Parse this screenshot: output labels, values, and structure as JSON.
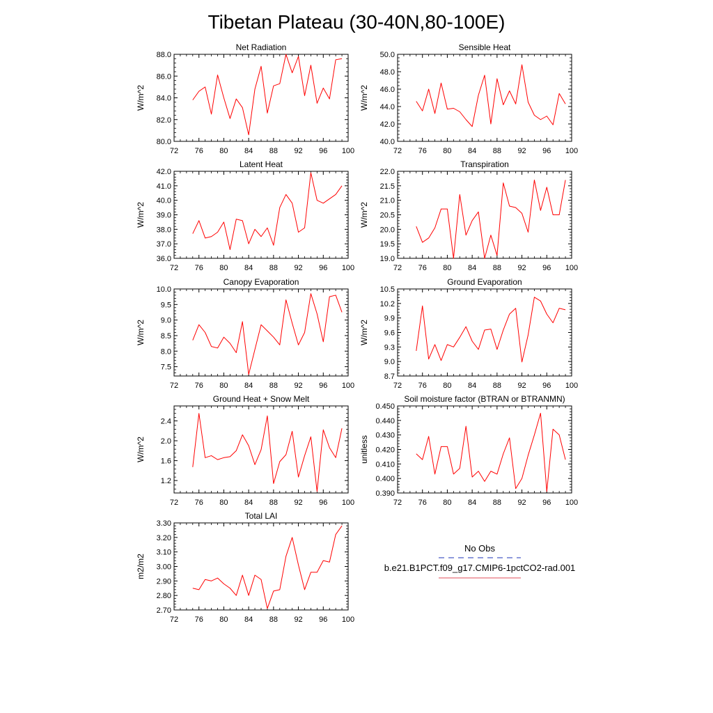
{
  "page_title": "Tibetan Plateau (30-40N,80-100E)",
  "legend": {
    "entries": [
      {
        "label": "No Obs",
        "color": "#4a5cc7",
        "style": "dashed"
      },
      {
        "label": "b.e21.B1PCT.f09_g17.CMIP6-1pctCO2-rad.001",
        "color": "#e8707a",
        "style": "solid"
      }
    ]
  },
  "chart_data": [
    {
      "type": "line",
      "title": "Net Radiation",
      "ylabel": "W/m^2",
      "xlim": [
        72,
        100
      ],
      "ylim": [
        80.0,
        88.0
      ],
      "xticks": [
        72,
        76,
        80,
        84,
        88,
        92,
        96,
        100
      ],
      "xtick_labels": [
        "72",
        "76",
        "80",
        "84",
        "88",
        "92",
        "96",
        "100"
      ],
      "yticks": [
        80.0,
        82.0,
        84.0,
        86.0,
        88.0
      ],
      "ytick_labels": [
        "80.0",
        "82.0",
        "84.0",
        "86.0",
        "88.0"
      ],
      "series": [
        {
          "color": "#ff0000",
          "x": [
            75,
            76,
            77,
            78,
            79,
            80,
            81,
            82,
            83,
            84,
            85,
            86,
            87,
            88,
            89,
            90,
            91,
            92,
            93,
            94,
            95,
            96,
            97,
            98,
            99
          ],
          "values": [
            83.8,
            84.6,
            85.0,
            82.5,
            86.1,
            84.0,
            82.1,
            83.9,
            83.1,
            80.6,
            84.8,
            86.9,
            82.6,
            85.1,
            85.3,
            88.0,
            86.3,
            87.8,
            84.2,
            87.0,
            83.5,
            84.9,
            83.9,
            87.5,
            87.6
          ]
        }
      ]
    },
    {
      "type": "line",
      "title": "Sensible Heat",
      "ylabel": "W/m^2",
      "xlim": [
        72,
        100
      ],
      "ylim": [
        40.0,
        50.0
      ],
      "xticks": [
        72,
        76,
        80,
        84,
        88,
        92,
        96,
        100
      ],
      "xtick_labels": [
        "72",
        "76",
        "80",
        "84",
        "88",
        "92",
        "96",
        "100"
      ],
      "yticks": [
        40.0,
        42.0,
        44.0,
        46.0,
        48.0,
        50.0
      ],
      "ytick_labels": [
        "40.0",
        "42.0",
        "44.0",
        "46.0",
        "48.0",
        "50.0"
      ],
      "series": [
        {
          "color": "#ff0000",
          "x": [
            75,
            76,
            77,
            78,
            79,
            80,
            81,
            82,
            83,
            84,
            85,
            86,
            87,
            88,
            89,
            90,
            91,
            92,
            93,
            94,
            95,
            96,
            97,
            98,
            99
          ],
          "values": [
            44.6,
            43.5,
            46.0,
            43.2,
            46.7,
            43.7,
            43.8,
            43.4,
            42.5,
            41.7,
            45.3,
            47.6,
            42.0,
            47.2,
            44.2,
            45.8,
            44.3,
            48.8,
            44.5,
            43.0,
            42.5,
            42.9,
            41.9,
            45.5,
            44.3
          ]
        }
      ]
    },
    {
      "type": "line",
      "title": "Latent Heat",
      "ylabel": "W/m^2",
      "xlim": [
        72,
        100
      ],
      "ylim": [
        36.0,
        42.0
      ],
      "xticks": [
        72,
        76,
        80,
        84,
        88,
        92,
        96,
        100
      ],
      "xtick_labels": [
        "72",
        "76",
        "80",
        "84",
        "88",
        "92",
        "96",
        "100"
      ],
      "yticks": [
        36.0,
        37.0,
        38.0,
        39.0,
        40.0,
        41.0,
        42.0
      ],
      "ytick_labels": [
        "36.0",
        "37.0",
        "38.0",
        "39.0",
        "40.0",
        "41.0",
        "42.0"
      ],
      "series": [
        {
          "color": "#ff0000",
          "x": [
            75,
            76,
            77,
            78,
            79,
            80,
            81,
            82,
            83,
            84,
            85,
            86,
            87,
            88,
            89,
            90,
            91,
            92,
            93,
            94,
            95,
            96,
            97,
            98,
            99
          ],
          "values": [
            37.7,
            38.6,
            37.4,
            37.5,
            37.8,
            38.5,
            36.6,
            38.7,
            38.6,
            37.0,
            38.0,
            37.5,
            38.1,
            36.9,
            39.5,
            40.4,
            39.8,
            37.8,
            38.1,
            41.9,
            40.0,
            39.8,
            40.1,
            40.4,
            41.0
          ]
        }
      ]
    },
    {
      "type": "line",
      "title": "Transpiration",
      "ylabel": "W/m^2",
      "xlim": [
        72,
        100
      ],
      "ylim": [
        19.0,
        22.0
      ],
      "xticks": [
        72,
        76,
        80,
        84,
        88,
        92,
        96,
        100
      ],
      "xtick_labels": [
        "72",
        "76",
        "80",
        "84",
        "88",
        "92",
        "96",
        "100"
      ],
      "yticks": [
        19.0,
        19.5,
        20.0,
        20.5,
        21.0,
        21.5,
        22.0
      ],
      "ytick_labels": [
        "19.0",
        "19.5",
        "20.0",
        "20.5",
        "21.0",
        "21.5",
        "22.0"
      ],
      "series": [
        {
          "color": "#ff0000",
          "x": [
            75,
            76,
            77,
            78,
            79,
            80,
            81,
            82,
            83,
            84,
            85,
            86,
            87,
            88,
            89,
            90,
            91,
            92,
            93,
            94,
            95,
            96,
            97,
            98,
            99
          ],
          "values": [
            20.1,
            19.55,
            19.7,
            20.05,
            20.7,
            20.7,
            19.0,
            21.2,
            19.8,
            20.3,
            20.6,
            19.0,
            19.8,
            19.1,
            21.6,
            20.8,
            20.75,
            20.55,
            19.9,
            21.7,
            20.65,
            21.45,
            20.5,
            20.5,
            21.7
          ]
        }
      ]
    },
    {
      "type": "line",
      "title": "Canopy Evaporation",
      "ylabel": "W/m^2",
      "xlim": [
        72,
        100
      ],
      "ylim": [
        7.2,
        10.0
      ],
      "xticks": [
        72,
        76,
        80,
        84,
        88,
        92,
        96,
        100
      ],
      "xtick_labels": [
        "72",
        "76",
        "80",
        "84",
        "88",
        "92",
        "96",
        "100"
      ],
      "yticks": [
        7.5,
        8.0,
        8.5,
        9.0,
        9.5,
        10.0
      ],
      "ytick_labels": [
        "7.5",
        "8.0",
        "8.5",
        "9.0",
        "9.5",
        "10.0"
      ],
      "series": [
        {
          "color": "#ff0000",
          "x": [
            75,
            76,
            77,
            78,
            79,
            80,
            81,
            82,
            83,
            84,
            85,
            86,
            87,
            88,
            89,
            90,
            91,
            92,
            93,
            94,
            95,
            96,
            97,
            98,
            99
          ],
          "values": [
            8.35,
            8.85,
            8.6,
            8.15,
            8.1,
            8.45,
            8.25,
            7.95,
            8.95,
            7.25,
            8.05,
            8.85,
            8.65,
            8.45,
            8.2,
            9.65,
            8.9,
            8.2,
            8.6,
            9.85,
            9.2,
            8.3,
            9.75,
            9.8,
            9.25
          ]
        }
      ]
    },
    {
      "type": "line",
      "title": "Ground Evaporation",
      "ylabel": "W/m^2",
      "xlim": [
        72,
        100
      ],
      "ylim": [
        8.7,
        10.5
      ],
      "xticks": [
        72,
        76,
        80,
        84,
        88,
        92,
        96,
        100
      ],
      "xtick_labels": [
        "72",
        "76",
        "80",
        "84",
        "88",
        "92",
        "96",
        "100"
      ],
      "yticks": [
        8.7,
        9.0,
        9.3,
        9.6,
        9.9,
        10.2,
        10.5
      ],
      "ytick_labels": [
        "8.7",
        "9.0",
        "9.3",
        "9.6",
        "9.9",
        "10.2",
        "10.5"
      ],
      "series": [
        {
          "color": "#ff0000",
          "x": [
            75,
            76,
            77,
            78,
            79,
            80,
            81,
            82,
            83,
            84,
            85,
            86,
            87,
            88,
            89,
            90,
            91,
            92,
            93,
            94,
            95,
            96,
            97,
            98,
            99
          ],
          "values": [
            9.22,
            10.15,
            9.05,
            9.35,
            9.02,
            9.35,
            9.3,
            9.5,
            9.72,
            9.42,
            9.25,
            9.65,
            9.67,
            9.25,
            9.65,
            9.98,
            10.1,
            8.99,
            9.55,
            10.33,
            10.25,
            9.98,
            9.8,
            10.1,
            10.07
          ]
        }
      ]
    },
    {
      "type": "line",
      "title": "Ground Heat + Snow Melt",
      "ylabel": "W/m^2",
      "xlim": [
        72,
        100
      ],
      "ylim": [
        0.95,
        2.7
      ],
      "xticks": [
        72,
        76,
        80,
        84,
        88,
        92,
        96,
        100
      ],
      "xtick_labels": [
        "72",
        "76",
        "80",
        "84",
        "88",
        "92",
        "96",
        "100"
      ],
      "yticks": [
        1.2,
        1.6,
        2.0,
        2.4
      ],
      "ytick_labels": [
        "1.2",
        "1.6",
        "2.0",
        "2.4"
      ],
      "series": [
        {
          "color": "#ff0000",
          "x": [
            75,
            76,
            77,
            78,
            79,
            80,
            81,
            82,
            83,
            84,
            85,
            86,
            87,
            88,
            89,
            90,
            91,
            92,
            93,
            94,
            95,
            96,
            97,
            98,
            99
          ],
          "values": [
            1.47,
            2.55,
            1.66,
            1.7,
            1.62,
            1.66,
            1.68,
            1.8,
            2.12,
            1.9,
            1.52,
            1.82,
            2.5,
            1.14,
            1.58,
            1.72,
            2.19,
            1.27,
            1.7,
            2.08,
            0.98,
            2.22,
            1.86,
            1.66,
            2.25
          ]
        }
      ]
    },
    {
      "type": "line",
      "title": "Soil moisture factor (BTRAN or BTRANMN)",
      "ylabel": "unitless",
      "xlim": [
        72,
        100
      ],
      "ylim": [
        0.39,
        0.45
      ],
      "xticks": [
        72,
        76,
        80,
        84,
        88,
        92,
        96,
        100
      ],
      "xtick_labels": [
        "72",
        "76",
        "80",
        "84",
        "88",
        "92",
        "96",
        "100"
      ],
      "yticks": [
        0.39,
        0.4,
        0.41,
        0.42,
        0.43,
        0.44,
        0.45
      ],
      "ytick_labels": [
        "0.390",
        "0.400",
        "0.410",
        "0.420",
        "0.430",
        "0.440",
        "0.450"
      ],
      "series": [
        {
          "color": "#ff0000",
          "x": [
            75,
            76,
            77,
            78,
            79,
            80,
            81,
            82,
            83,
            84,
            85,
            86,
            87,
            88,
            89,
            90,
            91,
            92,
            93,
            94,
            95,
            96,
            97,
            98,
            99
          ],
          "values": [
            0.417,
            0.413,
            0.429,
            0.403,
            0.422,
            0.422,
            0.403,
            0.407,
            0.436,
            0.401,
            0.405,
            0.398,
            0.405,
            0.403,
            0.417,
            0.428,
            0.393,
            0.4,
            0.416,
            0.43,
            0.445,
            0.391,
            0.434,
            0.43,
            0.413
          ]
        }
      ]
    },
    {
      "type": "line",
      "title": "Total LAI",
      "ylabel": "m2/m2",
      "xlim": [
        72,
        100
      ],
      "ylim": [
        2.7,
        3.3
      ],
      "xticks": [
        72,
        76,
        80,
        84,
        88,
        92,
        96,
        100
      ],
      "xtick_labels": [
        "72",
        "76",
        "80",
        "84",
        "88",
        "92",
        "96",
        "100"
      ],
      "yticks": [
        2.7,
        2.8,
        2.9,
        3.0,
        3.1,
        3.2,
        3.3
      ],
      "ytick_labels": [
        "2.70",
        "2.80",
        "2.90",
        "3.00",
        "3.10",
        "3.20",
        "3.30"
      ],
      "series": [
        {
          "color": "#ff0000",
          "x": [
            75,
            76,
            77,
            78,
            79,
            80,
            81,
            82,
            83,
            84,
            85,
            86,
            87,
            88,
            89,
            90,
            91,
            92,
            93,
            94,
            95,
            96,
            97,
            98,
            99
          ],
          "values": [
            2.85,
            2.84,
            2.91,
            2.9,
            2.92,
            2.88,
            2.85,
            2.8,
            2.94,
            2.8,
            2.94,
            2.91,
            2.71,
            2.83,
            2.84,
            3.07,
            3.2,
            3.01,
            2.84,
            2.96,
            2.96,
            3.04,
            3.03,
            3.22,
            3.28
          ]
        }
      ]
    }
  ]
}
